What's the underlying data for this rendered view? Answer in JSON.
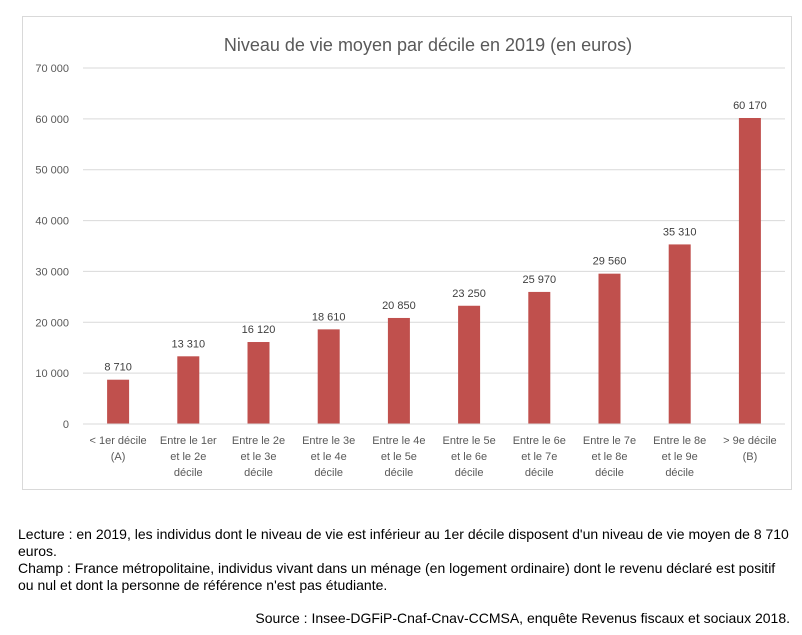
{
  "chart_data": {
    "type": "bar",
    "title": "Niveau de vie moyen par décile en 2019 (en euros)",
    "categories": [
      [
        "< 1er décile",
        "(A)"
      ],
      [
        "Entre le 1er",
        "et le 2e",
        "décile"
      ],
      [
        "Entre le 2e",
        "et le 3e",
        "décile"
      ],
      [
        "Entre le 3e",
        "et le 4e",
        "décile"
      ],
      [
        "Entre le 4e",
        "et le 5e",
        "décile"
      ],
      [
        "Entre le 5e",
        "et le 6e",
        "décile"
      ],
      [
        "Entre le 6e",
        "et le 7e",
        "décile"
      ],
      [
        "Entre le 7e",
        "et le 8e",
        "décile"
      ],
      [
        "Entre le 8e",
        "et le 9e",
        "décile"
      ],
      [
        "> 9e décile",
        "(B)"
      ]
    ],
    "values": [
      8710,
      13310,
      16120,
      18610,
      20850,
      23250,
      25970,
      29560,
      35310,
      60170
    ],
    "value_labels": [
      "8 710",
      "13 310",
      "16 120",
      "18 610",
      "20 850",
      "23 250",
      "25 970",
      "29 560",
      "35 310",
      "60 170"
    ],
    "ylim": [
      0,
      70000
    ],
    "yticks": [
      0,
      10000,
      20000,
      30000,
      40000,
      50000,
      60000,
      70000
    ],
    "ytick_labels": [
      "0",
      "10 000",
      "20 000",
      "30 000",
      "40 000",
      "50 000",
      "60 000",
      "70 000"
    ],
    "xlabel": "",
    "ylabel": "",
    "grid": true,
    "bar_color": "#c0504d",
    "grid_color": "#d9d9d9",
    "text_color": "#595959"
  },
  "notes": {
    "lecture": "Lecture : en 2019, les individus dont le niveau de vie est inférieur au 1er décile disposent d'un niveau de vie moyen de 8 710 euros.",
    "champ": "Champ : France métropolitaine, individus vivant dans un ménage (en logement ordinaire) dont le revenu déclaré est positif ou nul et dont la personne de référence n'est pas étudiante.",
    "source": "Source : Insee-DGFiP-Cnaf-Cnav-CCMSA, enquête Revenus fiscaux et sociaux 2018."
  }
}
